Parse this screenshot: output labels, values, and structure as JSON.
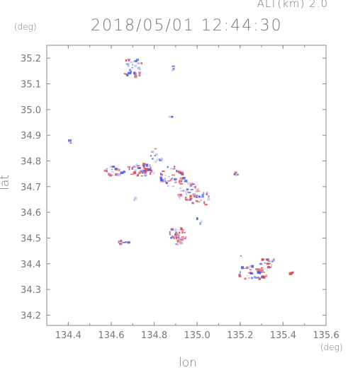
{
  "header": {
    "alt_label": "ALT(km)  2.0",
    "timestamp": "2018/05/01 12:44:30"
  },
  "chart_data": {
    "type": "scatter",
    "title": "2018/05/01 12:44:30",
    "subtitle": "ALT(km)  2.0",
    "xlabel": "lon",
    "ylabel": "lat",
    "x_unit": "(deg)",
    "y_unit": "(deg)",
    "xlim": [
      134.3,
      135.6
    ],
    "ylim": [
      34.16,
      35.25
    ],
    "x_ticks": [
      {
        "value": 134.4,
        "label": "134.4"
      },
      {
        "value": 134.6,
        "label": "134.6"
      },
      {
        "value": 134.8,
        "label": "134.8"
      },
      {
        "value": 135.0,
        "label": "135.0"
      },
      {
        "value": 135.2,
        "label": "135.2"
      },
      {
        "value": 135.4,
        "label": "135.4"
      },
      {
        "value": 135.6,
        "label": "135.6"
      }
    ],
    "y_ticks": [
      {
        "value": 34.2,
        "label": "34.2"
      },
      {
        "value": 34.3,
        "label": "34.3"
      },
      {
        "value": 34.4,
        "label": "34.4"
      },
      {
        "value": 34.5,
        "label": "34.5"
      },
      {
        "value": 34.6,
        "label": "34.6"
      },
      {
        "value": 34.7,
        "label": "34.7"
      },
      {
        "value": 34.8,
        "label": "34.8"
      },
      {
        "value": 34.9,
        "label": "34.9"
      },
      {
        "value": 35.0,
        "label": "35.0"
      },
      {
        "value": 35.1,
        "label": "35.1"
      },
      {
        "value": 35.2,
        "label": "35.2"
      }
    ],
    "grid": false,
    "colors": {
      "positive": "#e05050",
      "negative": "#4a5ae8",
      "light": "#b8bcf0",
      "axis": "#888888"
    },
    "clusters": [
      {
        "lon": 134.7,
        "lat": 35.16,
        "spread": [
          0.05,
          0.04
        ],
        "n": 30,
        "bias": 0.35
      },
      {
        "lon": 134.89,
        "lat": 35.16,
        "spread": [
          0.02,
          0.01
        ],
        "n": 4,
        "bias": 0.0
      },
      {
        "lon": 134.88,
        "lat": 34.975,
        "spread": [
          0.01,
          0.01
        ],
        "n": 2,
        "bias": 0.0
      },
      {
        "lon": 134.41,
        "lat": 34.87,
        "spread": [
          0.01,
          0.01
        ],
        "n": 2,
        "bias": 0.5
      },
      {
        "lon": 134.62,
        "lat": 34.76,
        "spread": [
          0.05,
          0.02
        ],
        "n": 25,
        "bias": 0.45
      },
      {
        "lon": 134.74,
        "lat": 34.765,
        "spread": [
          0.07,
          0.025
        ],
        "n": 45,
        "bias": 0.45
      },
      {
        "lon": 134.81,
        "lat": 34.82,
        "spread": [
          0.03,
          0.03
        ],
        "n": 14,
        "bias": 0.2
      },
      {
        "lon": 134.88,
        "lat": 34.74,
        "spread": [
          0.06,
          0.04
        ],
        "n": 45,
        "bias": 0.45
      },
      {
        "lon": 134.96,
        "lat": 34.68,
        "spread": [
          0.05,
          0.05
        ],
        "n": 40,
        "bias": 0.4
      },
      {
        "lon": 135.02,
        "lat": 34.655,
        "spread": [
          0.04,
          0.03
        ],
        "n": 20,
        "bias": 0.35
      },
      {
        "lon": 134.71,
        "lat": 34.655,
        "spread": [
          0.01,
          0.01
        ],
        "n": 3,
        "bias": 0.0
      },
      {
        "lon": 135.18,
        "lat": 34.755,
        "spread": [
          0.015,
          0.01
        ],
        "n": 4,
        "bias": 0.5
      },
      {
        "lon": 135.01,
        "lat": 34.565,
        "spread": [
          0.015,
          0.015
        ],
        "n": 4,
        "bias": 0.0
      },
      {
        "lon": 134.91,
        "lat": 34.51,
        "spread": [
          0.04,
          0.035
        ],
        "n": 40,
        "bias": 0.55
      },
      {
        "lon": 134.66,
        "lat": 34.485,
        "spread": [
          0.03,
          0.01
        ],
        "n": 10,
        "bias": 0.25
      },
      {
        "lon": 135.26,
        "lat": 34.365,
        "spread": [
          0.07,
          0.03
        ],
        "n": 45,
        "bias": 0.4
      },
      {
        "lon": 135.33,
        "lat": 34.405,
        "spread": [
          0.035,
          0.02
        ],
        "n": 18,
        "bias": 0.2
      },
      {
        "lon": 135.44,
        "lat": 34.365,
        "spread": [
          0.01,
          0.005
        ],
        "n": 4,
        "bias": 0.9
      },
      {
        "lon": 135.21,
        "lat": 34.435,
        "spread": [
          0.01,
          0.01
        ],
        "n": 2,
        "bias": 0.0
      }
    ]
  }
}
